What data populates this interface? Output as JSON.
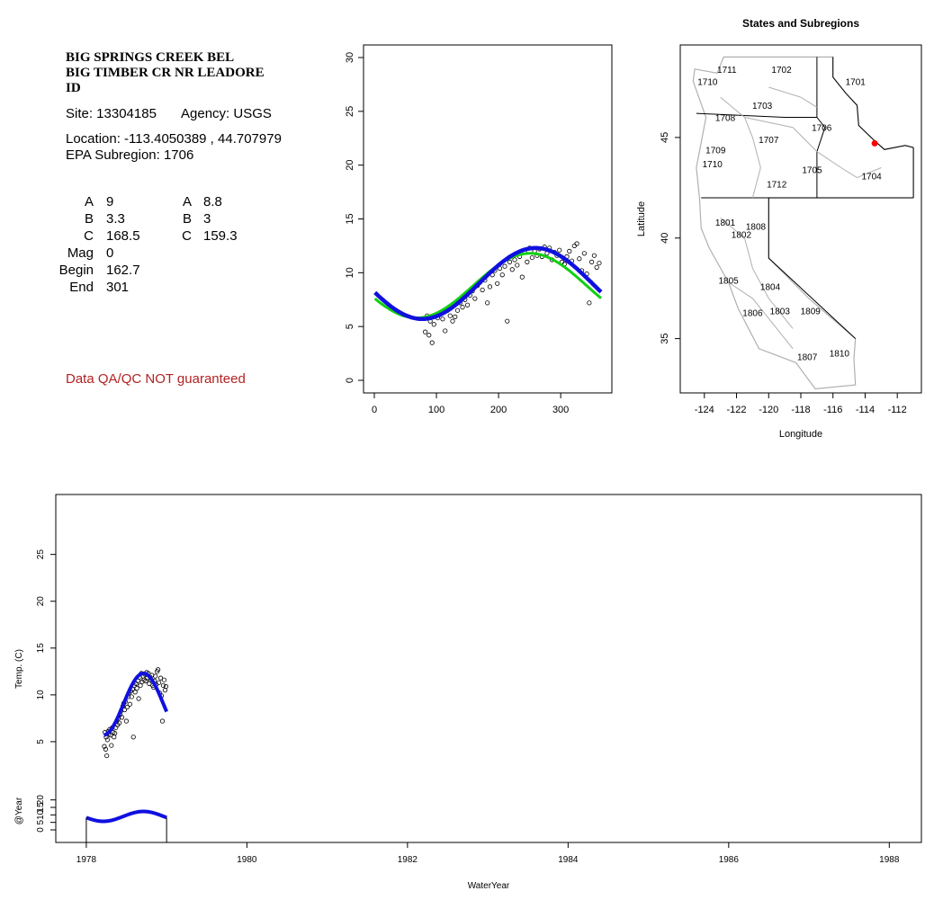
{
  "site": {
    "name_line1": "BIG SPRINGS CREEK BEL",
    "name_line2": "BIG TIMBER CR NR LEADORE",
    "name_line3": "ID",
    "site_line": "Site: 13304185",
    "agency_line": "Agency: USGS",
    "location_line": "Location: -113.4050389 , 44.707979",
    "subregion_line": "EPA Subregion: 1706",
    "qa_note": "Data QA/QC NOT guaranteed"
  },
  "params": {
    "fit1": [
      {
        "label": "A",
        "value": "9"
      },
      {
        "label": "B",
        "value": "3.3"
      },
      {
        "label": "C",
        "value": "168.5"
      },
      {
        "label": "Mag",
        "value": "0"
      },
      {
        "label": "Begin",
        "value": "162.7"
      },
      {
        "label": "End",
        "value": "301"
      }
    ],
    "fit2": [
      {
        "label": "A",
        "value": "8.8"
      },
      {
        "label": "B",
        "value": "3"
      },
      {
        "label": "C",
        "value": "159.3"
      }
    ]
  },
  "colors": {
    "fit_blue": "#1010e0",
    "fit_green": "#10d010",
    "site_marker": "#ff0000",
    "qa_text": "#b22222",
    "map_boundary": "#b0b0b0"
  },
  "chart_data": [
    {
      "id": "seasonal",
      "type": "scatter",
      "title": "",
      "xlabel": "",
      "ylabel": "",
      "xlim": [
        0,
        365
      ],
      "ylim": [
        0,
        30
      ],
      "xticks": [
        "0",
        "100",
        "200",
        "300"
      ],
      "yticks": [
        "0",
        "5",
        "10",
        "15",
        "20",
        "25",
        "30"
      ],
      "series": [
        {
          "kind": "points",
          "x": [
            82,
            85,
            88,
            90,
            93,
            96,
            99,
            102,
            106,
            110,
            114,
            118,
            122,
            126,
            130,
            134,
            138,
            142,
            146,
            150,
            154,
            158,
            162,
            166,
            170,
            174,
            178,
            182,
            186,
            190,
            194,
            198,
            202,
            206,
            210,
            214,
            218,
            222,
            226,
            230,
            234,
            238,
            242,
            246,
            250,
            254,
            258,
            262,
            266,
            270,
            274,
            278,
            282,
            286,
            290,
            294,
            298,
            302,
            306,
            310,
            314,
            318,
            322,
            326,
            330,
            334,
            338,
            342,
            346,
            350,
            354,
            358,
            362
          ],
          "y": [
            4.5,
            6.0,
            4.2,
            5.5,
            3.5,
            5.2,
            6.1,
            5.8,
            6.3,
            5.7,
            4.6,
            6.5,
            6.0,
            5.5,
            5.9,
            6.5,
            7.2,
            6.8,
            7.5,
            7.0,
            7.9,
            8.3,
            7.6,
            8.8,
            9.1,
            8.4,
            9.3,
            7.2,
            8.7,
            9.8,
            10.2,
            9.0,
            10.4,
            9.8,
            10.6,
            5.5,
            11.0,
            10.3,
            11.2,
            10.7,
            11.5,
            9.6,
            11.9,
            11.0,
            12.3,
            11.4,
            12.0,
            11.6,
            12.2,
            11.5,
            12.4,
            11.8,
            12.3,
            11.2,
            11.9,
            11.6,
            12.1,
            11.0,
            10.8,
            11.5,
            12.0,
            11.1,
            12.5,
            12.7,
            11.3,
            10.2,
            11.8,
            9.9,
            7.2,
            11.0,
            11.6,
            10.5,
            10.9
          ]
        },
        {
          "kind": "fit",
          "color": "green",
          "A": 8.8,
          "B": 3,
          "C": 159.3
        },
        {
          "kind": "fit",
          "color": "blue",
          "A": 9,
          "B": 3.3,
          "C": 168.5
        }
      ]
    },
    {
      "id": "map",
      "type": "map",
      "title": "States and Subregions",
      "xlabel": "Longitude",
      "ylabel": "Latitude",
      "xlim": [
        -125.5,
        -110.5
      ],
      "ylim": [
        32.3,
        49.6
      ],
      "xticks": [
        "-124",
        "-122",
        "-120",
        "-118",
        "-116",
        "-114",
        "-112"
      ],
      "yticks": [
        "35",
        "40",
        "45"
      ],
      "site": {
        "lon": -113.4050389,
        "lat": 44.707979
      },
      "region_labels": [
        {
          "text": "1711",
          "lon": -122.6,
          "lat": 48.4
        },
        {
          "text": "1702",
          "lon": -119.2,
          "lat": 48.4
        },
        {
          "text": "1701",
          "lon": -114.6,
          "lat": 47.8
        },
        {
          "text": "1710",
          "lon": -123.8,
          "lat": 47.8
        },
        {
          "text": "1703",
          "lon": -120.4,
          "lat": 46.6
        },
        {
          "text": "1708",
          "lon": -122.7,
          "lat": 46.0
        },
        {
          "text": "1706",
          "lon": -116.7,
          "lat": 45.5
        },
        {
          "text": "1707",
          "lon": -120.0,
          "lat": 44.9
        },
        {
          "text": "1709",
          "lon": -123.3,
          "lat": 44.4
        },
        {
          "text": "1710",
          "lon": -123.5,
          "lat": 43.7
        },
        {
          "text": "1705",
          "lon": -117.3,
          "lat": 43.4
        },
        {
          "text": "1704",
          "lon": -113.6,
          "lat": 43.1
        },
        {
          "text": "1712",
          "lon": -119.5,
          "lat": 42.7
        },
        {
          "text": "1801",
          "lon": -122.7,
          "lat": 40.8
        },
        {
          "text": "1808",
          "lon": -120.8,
          "lat": 40.6
        },
        {
          "text": "1802",
          "lon": -121.7,
          "lat": 40.2
        },
        {
          "text": "1805",
          "lon": -122.5,
          "lat": 37.9
        },
        {
          "text": "1804",
          "lon": -119.9,
          "lat": 37.6
        },
        {
          "text": "1809",
          "lon": -117.4,
          "lat": 36.4
        },
        {
          "text": "1806",
          "lon": -121.0,
          "lat": 36.3
        },
        {
          "text": "1803",
          "lon": -119.3,
          "lat": 36.4
        },
        {
          "text": "1807",
          "lon": -117.6,
          "lat": 34.1
        },
        {
          "text": "1810",
          "lon": -115.6,
          "lat": 34.3
        }
      ]
    },
    {
      "id": "timeseries",
      "type": "scatter",
      "title": "",
      "xlabel": "WaterYear",
      "ylabel": "Temp. (C)",
      "xlim": [
        1977.62,
        1988.4
      ],
      "ylim": [
        0,
        30
      ],
      "xticks": [
        "1978",
        "1980",
        "1982",
        "1984",
        "1986",
        "1988"
      ],
      "yticks": [
        "5",
        "10",
        "15",
        "20",
        "25"
      ],
      "fit_year_range": [
        1978.22,
        1979.0
      ]
    },
    {
      "id": "yearfit",
      "type": "line",
      "title": "",
      "xlabel": "",
      "ylabel": "@Year",
      "ylim": [
        0,
        30
      ],
      "yticks": [
        "0",
        "5",
        "10",
        "15",
        "20"
      ],
      "year_range": [
        1978.0,
        1979.0
      ],
      "A": 9,
      "B": 3.3,
      "C": 168.5
    }
  ]
}
